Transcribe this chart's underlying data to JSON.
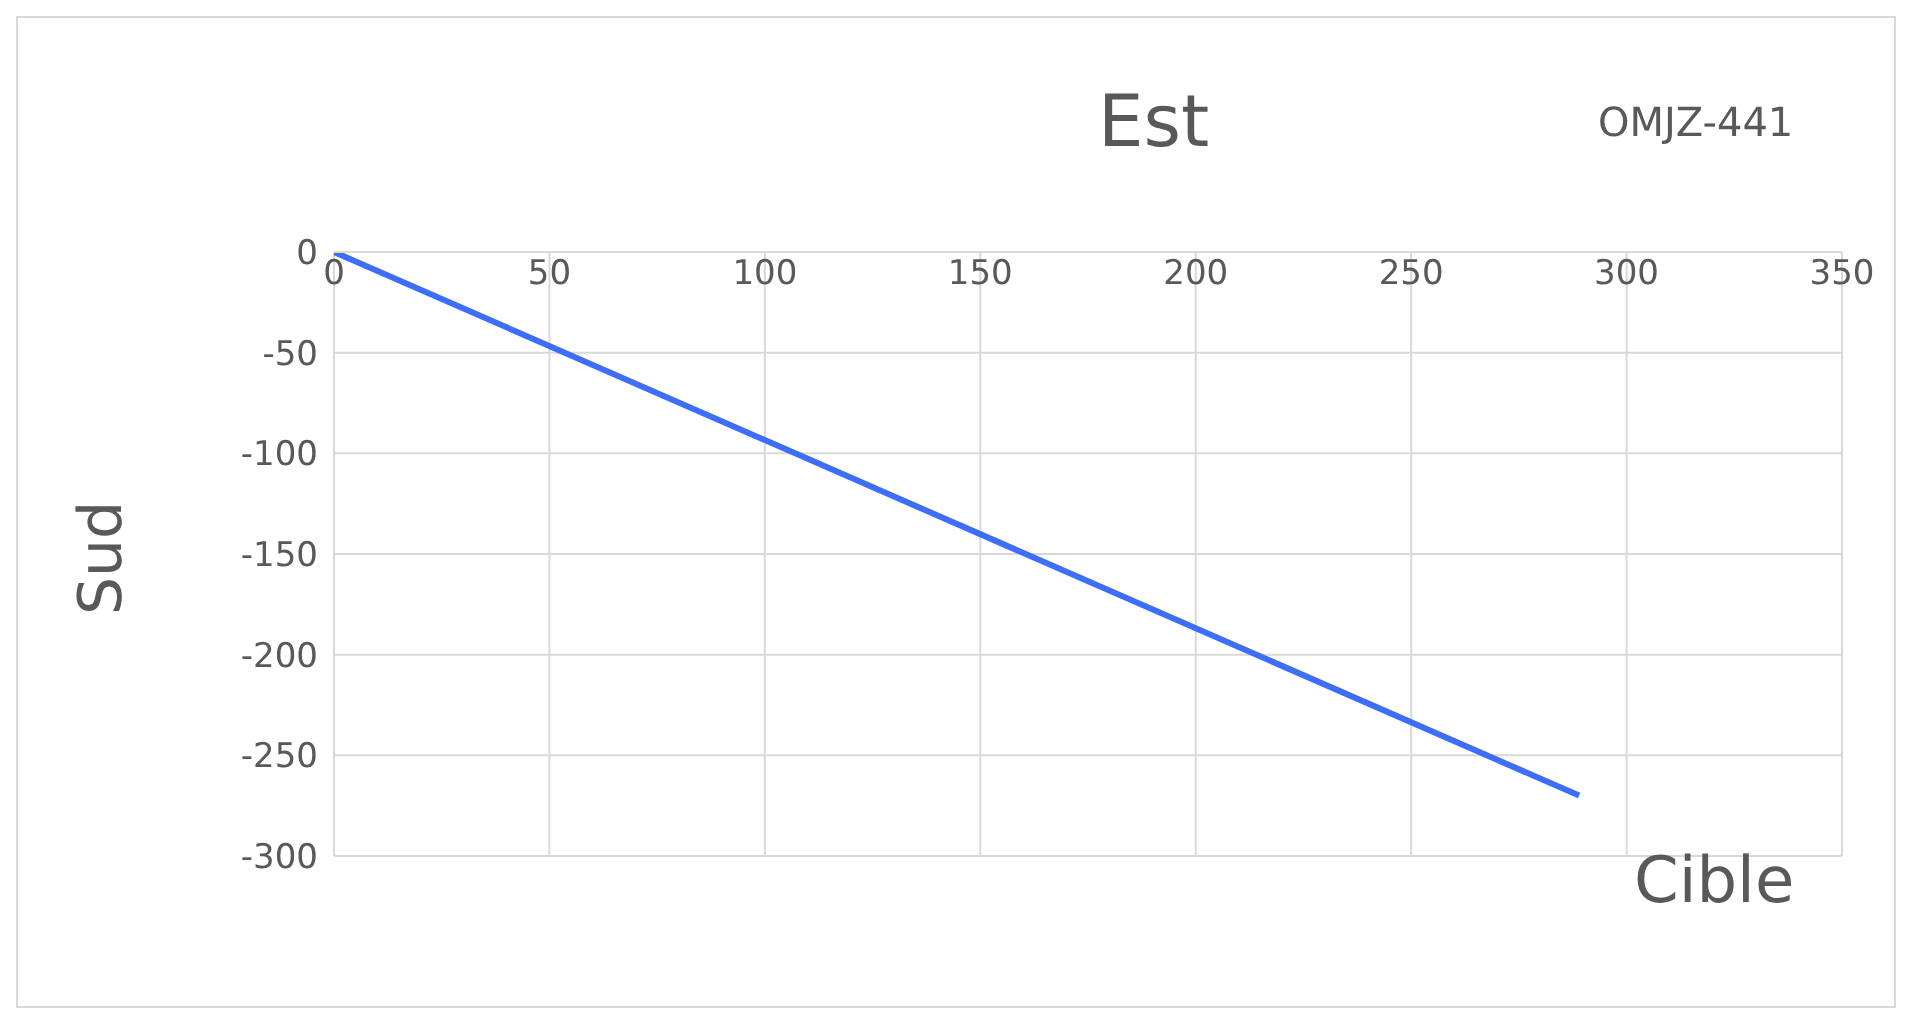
{
  "chart_data": {
    "type": "line",
    "xlabel": "Est",
    "ylabel": "Sud",
    "annotations": [
      "OMJZ-441",
      "Cible"
    ],
    "x": [
      0,
      289
    ],
    "series": [
      {
        "color": "#3d6ef5",
        "values": [
          0,
          -270
        ]
      }
    ],
    "xlim": [
      0,
      350
    ],
    "xticks": [
      0,
      50,
      100,
      150,
      200,
      250,
      300,
      350
    ],
    "ylim": [
      -300,
      0
    ],
    "yticks": [
      -300,
      -250,
      -200,
      -150,
      -100,
      -50,
      0
    ],
    "grid": true,
    "marker": "none",
    "line_style": "solid"
  }
}
